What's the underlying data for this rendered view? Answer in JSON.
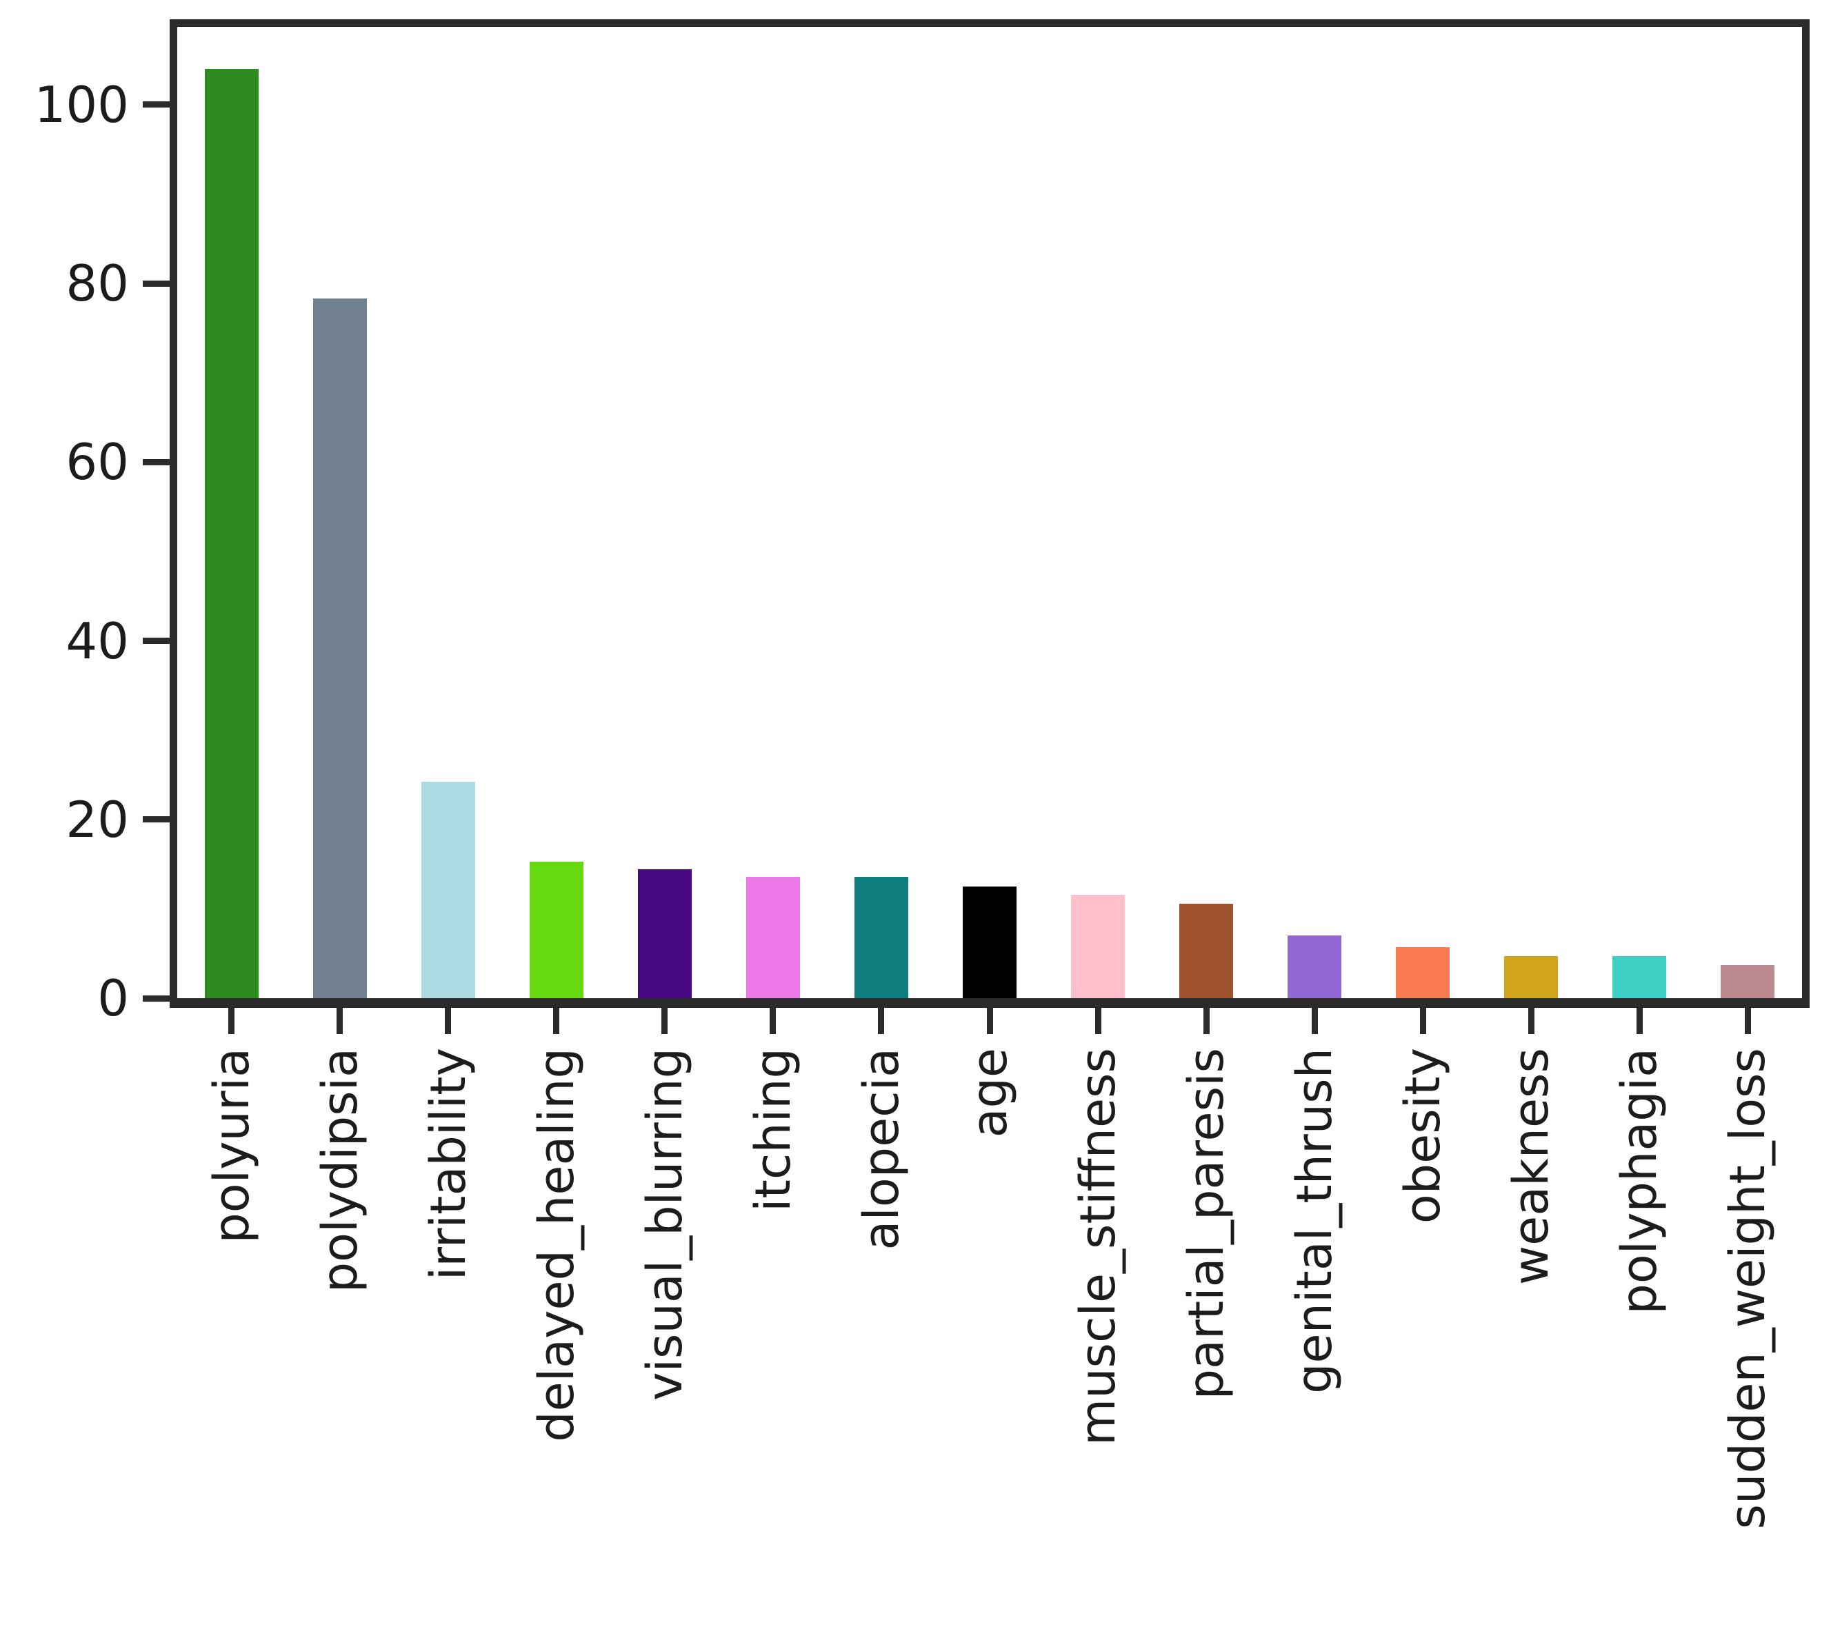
{
  "chart_data": {
    "type": "bar",
    "title": "",
    "xlabel": "",
    "ylabel": "",
    "categories": [
      "polyuria",
      "polydipsia",
      "irritability",
      "delayed_healing",
      "visual_blurring",
      "itching",
      "alopecia",
      "age",
      "muscle_stiffness",
      "partial_paresis",
      "genital_thrush",
      "obesity",
      "weakness",
      "polyphagia",
      "sudden_weight_loss"
    ],
    "values": [
      104.0,
      78.3,
      24.2,
      15.3,
      14.4,
      13.6,
      13.6,
      12.5,
      11.6,
      10.6,
      7.0,
      5.7,
      4.7,
      4.7,
      3.7
    ],
    "bar_colors": [
      "#2e8b20",
      "#708090",
      "#aedbe3",
      "#65da10",
      "#470982",
      "#ee7ae9",
      "#0e7f7e",
      "#000000",
      "#ffc0cb",
      "#a0522d",
      "#9168d6",
      "#fb7b50",
      "#d2a31d",
      "#3fd1c5",
      "#b9898e"
    ],
    "yticks": [
      0,
      20,
      40,
      60,
      80,
      100
    ],
    "ytick_labels": [
      "0",
      "20",
      "40",
      "60",
      "80",
      "100"
    ],
    "ylim": [
      0,
      108.7
    ],
    "grid": false,
    "legend": "none",
    "frame_color": "#2b2b2b",
    "text_color": "#1c1c1c",
    "background_color": "#ffffff",
    "bar_width_fraction": 0.5,
    "x_label_rotation_deg": 90
  }
}
